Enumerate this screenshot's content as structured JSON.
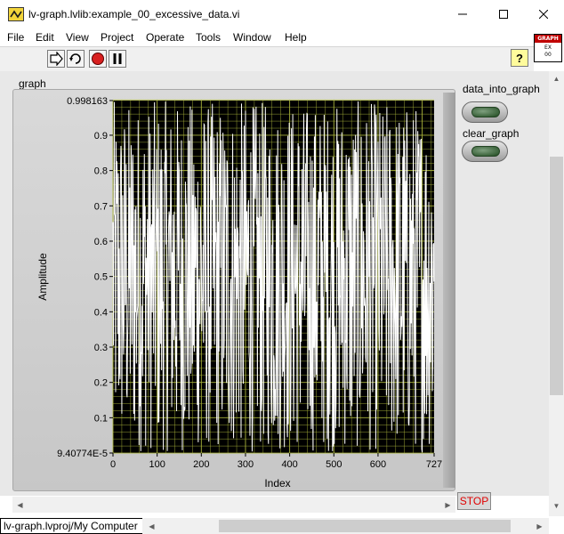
{
  "window": {
    "title": "lv-graph.lvlib:example_00_excessive_data.vi",
    "min_glyph": "—",
    "max_glyph": "☐",
    "close_glyph": "✕"
  },
  "menu": [
    "File",
    "Edit",
    "View",
    "Project",
    "Operate",
    "Tools",
    "Window",
    "Help"
  ],
  "vi_icon": {
    "band": "GRAPH",
    "line1": "EX",
    "line2": "00"
  },
  "toolbar": {
    "buttons": [
      "run-arrow-icon",
      "run-continuously-icon",
      "abort-icon",
      "pause-icon"
    ],
    "help_label": "?"
  },
  "graph": {
    "label": "graph",
    "background": "#000000",
    "grid_color": "#a8b23a",
    "trace_color": "#ffffff"
  },
  "controls": {
    "data_into_graph": "data_into_graph",
    "clear_graph": "clear_graph",
    "led_color": "#2f5a2f",
    "stop": "STOP",
    "stop_color": "#e00000"
  },
  "status": {
    "project": "lv-graph.lvproj/My Computer"
  },
  "chart_data": {
    "type": "line",
    "title": "",
    "xlabel": "Index",
    "ylabel": "Amplitude",
    "xlim": [
      0,
      727
    ],
    "ylim": [
      9.40774e-05,
      0.998163
    ],
    "x_ticks": [
      "0",
      "100",
      "200",
      "300",
      "400",
      "500",
      "600",
      "727"
    ],
    "y_ticks": [
      "9.40774E-5",
      "0.1",
      "0.2",
      "0.3",
      "0.4",
      "0.5",
      "0.6",
      "0.7",
      "0.8",
      "0.9",
      "0.998163"
    ],
    "grid": true,
    "legend": "none",
    "series": [
      {
        "description": "dense uniformly random values between 0 and 1 over indices 0–727",
        "point_count": 728
      }
    ]
  }
}
